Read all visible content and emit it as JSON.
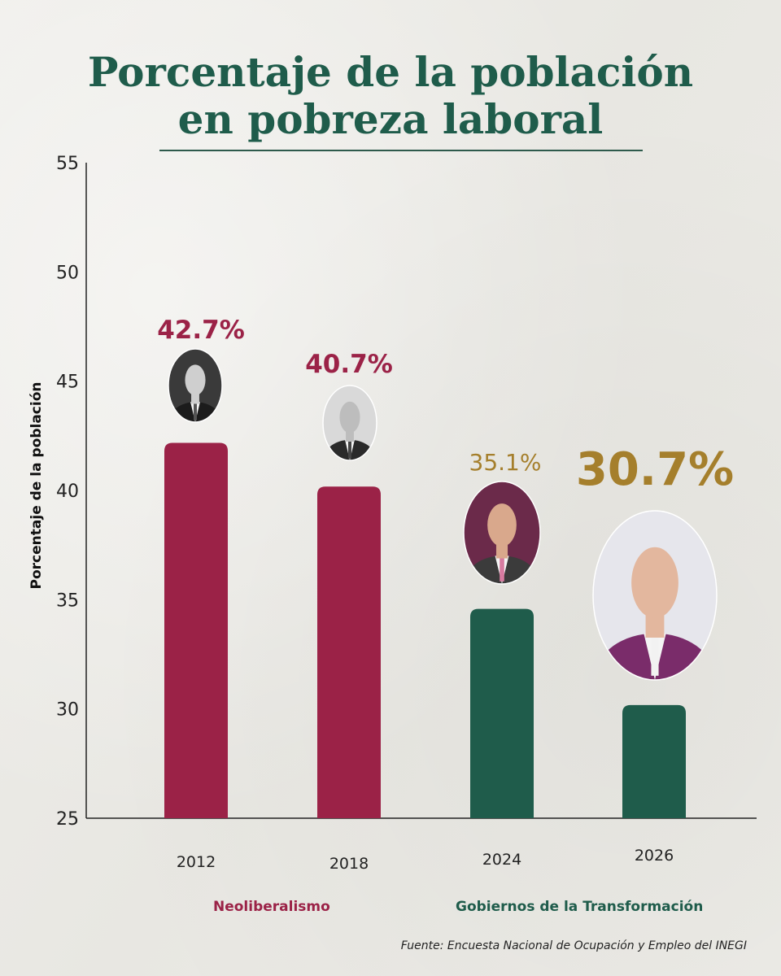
{
  "title_line1": "Porcentaje de la población",
  "title_line2": "en pobreza laboral",
  "chart_data": {
    "type": "bar",
    "categories": [
      "2012",
      "2018",
      "2024",
      "2026"
    ],
    "values": [
      42.7,
      40.7,
      35.1,
      30.7
    ],
    "value_labels": [
      "42.7%",
      "40.7%",
      "35.1%",
      "30.7%"
    ],
    "ylabel": "Porcentaje de la población",
    "xlabel": "",
    "ylim": [
      25,
      55
    ],
    "yticks": [
      25,
      30,
      35,
      40,
      45,
      50,
      55
    ],
    "grid": false,
    "bar_colors": [
      "#9b2247",
      "#9b2247",
      "#1f5c4b",
      "#1f5c4b"
    ],
    "label_colors": [
      "#9b2247",
      "#9b2247",
      "#a57f2c",
      "#a57f2c"
    ]
  },
  "group_labels": {
    "neoliberal": "Neoliberalismo",
    "transformation": "Gobiernos de la Transformación"
  },
  "source": "Fuente: Encuesta Nacional de Ocupación y Empleo del INEGI",
  "colors": {
    "title": "#1f5c4b",
    "guinda": "#9b2247",
    "green": "#1f5c4b",
    "gold": "#a57f2c"
  }
}
